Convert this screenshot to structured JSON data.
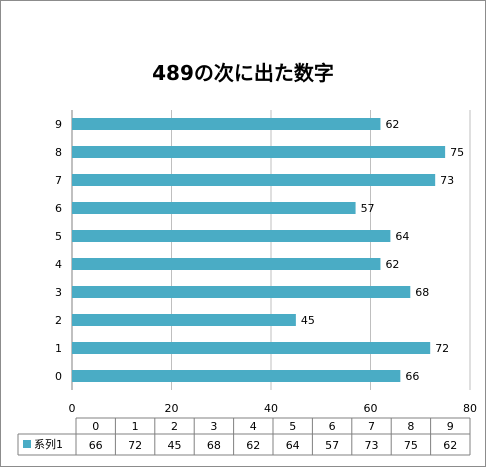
{
  "chart_data": {
    "type": "bar",
    "orientation": "horizontal",
    "title": "489の次に出た数字",
    "categories": [
      "0",
      "1",
      "2",
      "3",
      "4",
      "5",
      "6",
      "7",
      "8",
      "9"
    ],
    "series": [
      {
        "name": "系列1",
        "values": [
          66,
          72,
          45,
          68,
          62,
          64,
          57,
          73,
          75,
          62
        ],
        "color": "#4aacc5"
      }
    ],
    "xlim": [
      0,
      80
    ],
    "x_ticks": [
      "0",
      "20",
      "40",
      "60",
      "80"
    ],
    "grid": true,
    "data_table": true,
    "legend": "data-table-left"
  }
}
